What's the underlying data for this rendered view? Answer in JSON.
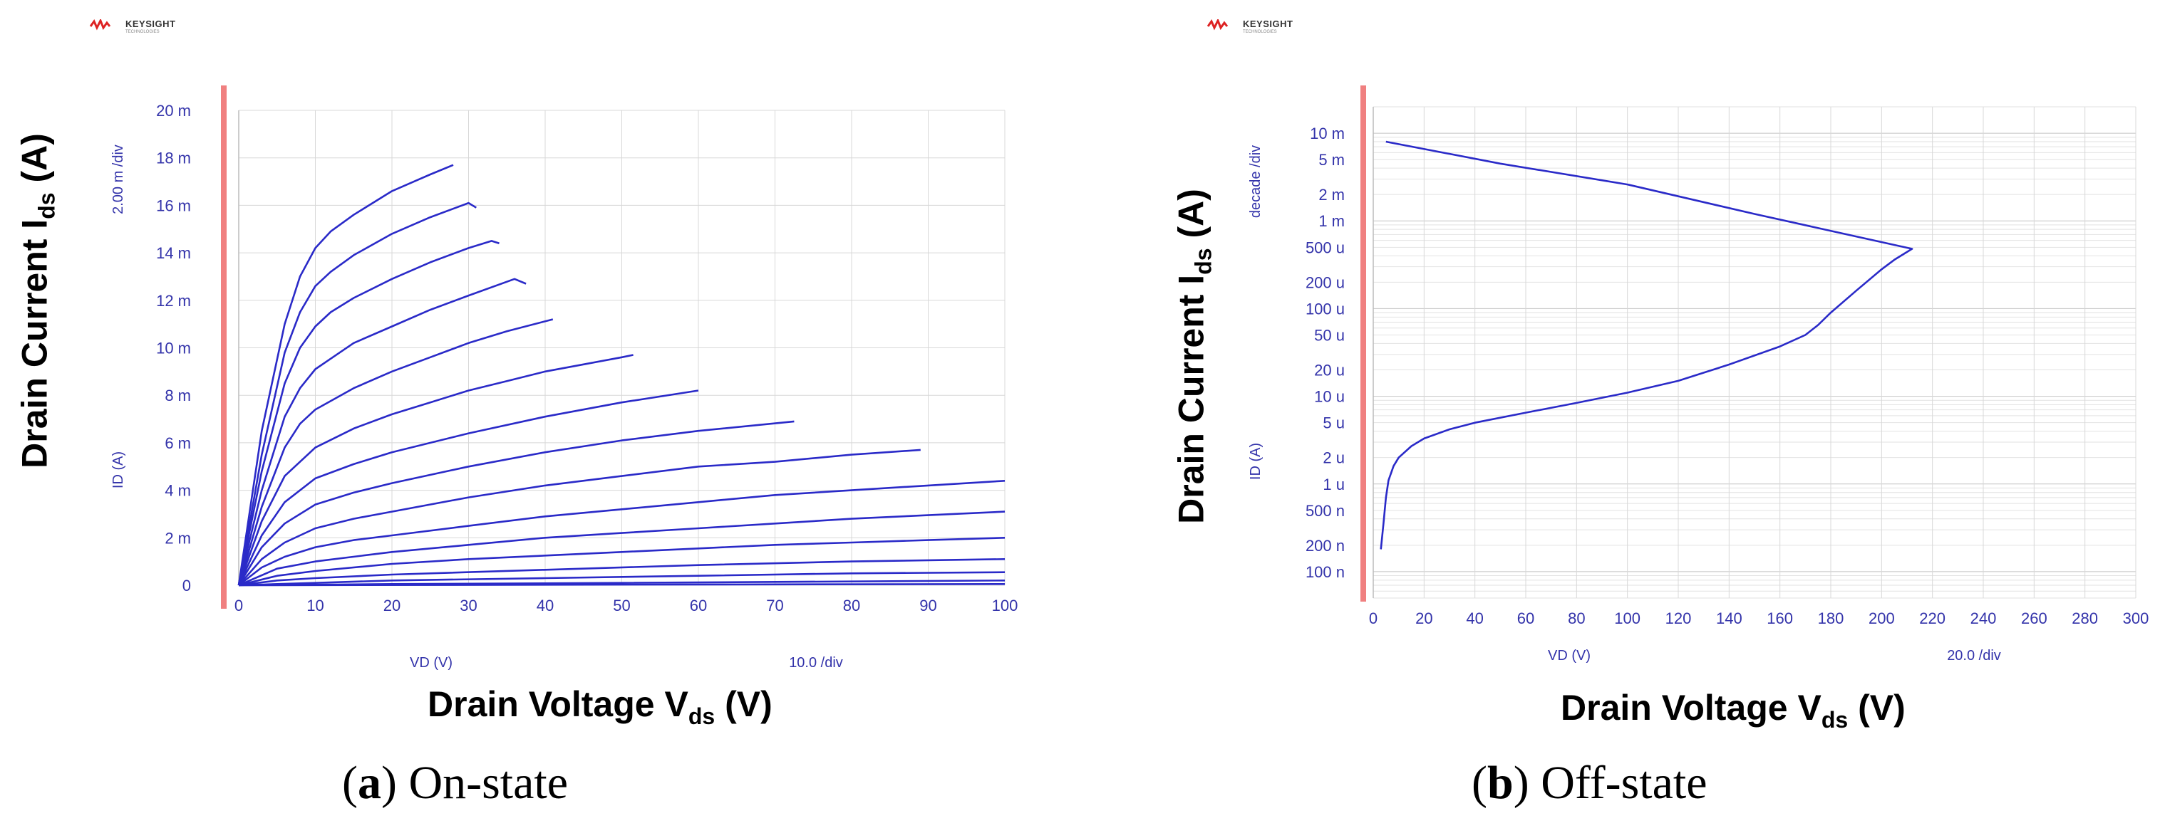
{
  "chart_data": [
    {
      "type": "line",
      "caption_letter": "a",
      "caption_text": "On-state",
      "brand": "KEYSIGHT",
      "brand_sub": "TECHNOLOGIES",
      "ylabel_main": "Drain Current I",
      "ylabel_sub": "ds",
      "ylabel_unit": " (A)",
      "xlabel_main": "Drain Voltage V",
      "xlabel_sub": "ds",
      "xlabel_unit": " (V)",
      "y_axis_name": "ID (A)",
      "y_scale_label": "2.00 m /div",
      "x_axis_name": "VD (V)",
      "x_scale_label": "10.0  /div",
      "xlim": [
        0,
        100
      ],
      "ylim": [
        0,
        20
      ],
      "x_ticks": [
        0,
        10,
        20,
        30,
        40,
        50,
        60,
        70,
        80,
        90,
        100
      ],
      "x_tick_labels": [
        "0",
        "10",
        "20",
        "30",
        "40",
        "50",
        "60",
        "70",
        "80",
        "90",
        "100"
      ],
      "y_ticks": [
        0,
        2,
        4,
        6,
        8,
        10,
        12,
        14,
        16,
        18,
        20
      ],
      "y_tick_labels": [
        "0",
        "2 m",
        "4 m",
        "6 m",
        "8 m",
        "10 m",
        "12 m",
        "14 m",
        "16 m",
        "18 m",
        "20 m"
      ],
      "series": [
        {
          "name": "curve-1",
          "x": [
            0,
            3,
            6,
            8,
            10,
            12,
            15,
            20,
            25,
            28
          ],
          "y": [
            0,
            6.5,
            11,
            13,
            14.2,
            14.9,
            15.6,
            16.6,
            17.3,
            17.7
          ]
        },
        {
          "name": "curve-2",
          "x": [
            0,
            3,
            6,
            8,
            10,
            12,
            15,
            20,
            25,
            30,
            31
          ],
          "y": [
            0,
            5.5,
            9.8,
            11.5,
            12.6,
            13.2,
            13.9,
            14.8,
            15.5,
            16.1,
            15.9
          ]
        },
        {
          "name": "curve-3",
          "x": [
            0,
            3,
            6,
            8,
            10,
            12,
            15,
            20,
            25,
            30,
            33,
            34
          ],
          "y": [
            0,
            4.8,
            8.5,
            10,
            10.9,
            11.5,
            12.1,
            12.9,
            13.6,
            14.2,
            14.5,
            14.4
          ]
        },
        {
          "name": "curve-4",
          "x": [
            0,
            3,
            6,
            8,
            10,
            15,
            20,
            25,
            30,
            36,
            37.5
          ],
          "y": [
            0,
            4,
            7.1,
            8.3,
            9.1,
            10.2,
            10.9,
            11.6,
            12.2,
            12.9,
            12.7
          ]
        },
        {
          "name": "curve-5",
          "x": [
            0,
            3,
            6,
            8,
            10,
            15,
            20,
            25,
            30,
            35,
            41
          ],
          "y": [
            0,
            3.3,
            5.8,
            6.8,
            7.4,
            8.3,
            9,
            9.6,
            10.2,
            10.7,
            11.2
          ]
        },
        {
          "name": "curve-6",
          "x": [
            0,
            3,
            6,
            10,
            15,
            20,
            25,
            30,
            35,
            40,
            45,
            50,
            51.5
          ],
          "y": [
            0,
            2.7,
            4.6,
            5.8,
            6.6,
            7.2,
            7.7,
            8.2,
            8.6,
            9.0,
            9.3,
            9.6,
            9.7
          ]
        },
        {
          "name": "curve-7",
          "x": [
            0,
            3,
            6,
            10,
            15,
            20,
            30,
            40,
            50,
            60
          ],
          "y": [
            0,
            2.1,
            3.5,
            4.5,
            5.1,
            5.6,
            6.4,
            7.1,
            7.7,
            8.2
          ]
        },
        {
          "name": "curve-8",
          "x": [
            0,
            3,
            6,
            10,
            15,
            20,
            30,
            40,
            50,
            60,
            72.5
          ],
          "y": [
            0,
            1.6,
            2.6,
            3.4,
            3.9,
            4.3,
            5,
            5.6,
            6.1,
            6.5,
            6.9
          ]
        },
        {
          "name": "curve-9",
          "x": [
            0,
            3,
            6,
            10,
            15,
            20,
            30,
            40,
            50,
            60,
            70,
            80,
            89
          ],
          "y": [
            0,
            1.1,
            1.8,
            2.4,
            2.8,
            3.1,
            3.7,
            4.2,
            4.6,
            5,
            5.2,
            5.5,
            5.7
          ]
        },
        {
          "name": "curve-10",
          "x": [
            0,
            3,
            6,
            10,
            15,
            20,
            30,
            40,
            50,
            60,
            70,
            80,
            90,
            100
          ],
          "y": [
            0,
            0.75,
            1.2,
            1.6,
            1.9,
            2.1,
            2.5,
            2.9,
            3.2,
            3.5,
            3.8,
            4.0,
            4.2,
            4.4
          ]
        },
        {
          "name": "curve-11",
          "x": [
            0,
            5,
            10,
            20,
            30,
            40,
            50,
            60,
            70,
            80,
            90,
            100
          ],
          "y": [
            0,
            0.7,
            1.0,
            1.4,
            1.7,
            2.0,
            2.2,
            2.4,
            2.6,
            2.8,
            2.95,
            3.1
          ]
        },
        {
          "name": "curve-12",
          "x": [
            0,
            5,
            10,
            20,
            30,
            40,
            50,
            60,
            70,
            80,
            90,
            100
          ],
          "y": [
            0,
            0.4,
            0.6,
            0.9,
            1.1,
            1.25,
            1.4,
            1.55,
            1.7,
            1.8,
            1.9,
            2.0
          ]
        },
        {
          "name": "curve-13",
          "x": [
            0,
            5,
            10,
            20,
            40,
            60,
            80,
            100
          ],
          "y": [
            0,
            0.2,
            0.3,
            0.45,
            0.65,
            0.85,
            1.0,
            1.1
          ]
        },
        {
          "name": "curve-14",
          "x": [
            0,
            10,
            20,
            40,
            60,
            80,
            100
          ],
          "y": [
            0,
            0.1,
            0.2,
            0.3,
            0.4,
            0.5,
            0.55
          ]
        },
        {
          "name": "curve-15",
          "x": [
            0,
            20,
            50,
            100
          ],
          "y": [
            0,
            0.05,
            0.1,
            0.2
          ]
        },
        {
          "name": "curve-16",
          "x": [
            0,
            100
          ],
          "y": [
            0,
            0.05
          ]
        }
      ]
    },
    {
      "type": "line",
      "caption_letter": "b",
      "caption_text": "Off-state",
      "brand": "KEYSIGHT",
      "brand_sub": "TECHNOLOGIES",
      "ylabel_main": "Drain Current I",
      "ylabel_sub": "ds",
      "ylabel_unit": " (A)",
      "xlabel_main": "Drain Voltage V",
      "xlabel_sub": "ds",
      "xlabel_unit": " (V)",
      "y_axis_name": "ID (A)",
      "y_scale_label": "decade /div",
      "x_axis_name": "VD (V)",
      "x_scale_label": "20.0  /div",
      "y_scale": "log",
      "xlim": [
        0,
        300
      ],
      "ylim": [
        5e-08,
        0.02
      ],
      "x_ticks": [
        0,
        20,
        40,
        60,
        80,
        100,
        120,
        140,
        160,
        180,
        200,
        220,
        240,
        260,
        280,
        300
      ],
      "x_tick_labels": [
        "0",
        "20",
        "40",
        "60",
        "80",
        "100",
        "120",
        "140",
        "160",
        "180",
        "200",
        "220",
        "240",
        "260",
        "280",
        "300"
      ],
      "y_ticks": [
        1e-07,
        2e-07,
        5e-07,
        1e-06,
        2e-06,
        5e-06,
        1e-05,
        2e-05,
        5e-05,
        0.0001,
        0.0002,
        0.0005,
        0.001,
        0.002,
        0.005,
        0.01
      ],
      "y_tick_labels": [
        "100 n",
        "200 n",
        "500 n",
        "1 u",
        "2 u",
        "5 u",
        "10 u",
        "20 u",
        "50 u",
        "100 u",
        "200 u",
        "500 u",
        "1 m",
        "2 m",
        "5 m",
        "10 m"
      ],
      "series": [
        {
          "name": "off-state-sweep",
          "x": [
            3,
            4,
            5,
            6,
            8,
            10,
            15,
            20,
            30,
            40,
            60,
            80,
            100,
            120,
            140,
            160,
            170,
            175,
            180,
            190,
            200,
            205,
            212,
            150,
            100,
            50,
            5
          ],
          "y": [
            1.8e-07,
            3.5e-07,
            7e-07,
            1.1e-06,
            1.6e-06,
            2e-06,
            2.7e-06,
            3.3e-06,
            4.2e-06,
            5e-06,
            6.5e-06,
            8.4e-06,
            1.1e-05,
            1.5e-05,
            2.3e-05,
            3.7e-05,
            5e-05,
            6.5e-05,
            9e-05,
            0.00016,
            0.00028,
            0.00036,
            0.00048,
            0.0012,
            0.0026,
            0.0045,
            0.008
          ]
        }
      ]
    }
  ]
}
